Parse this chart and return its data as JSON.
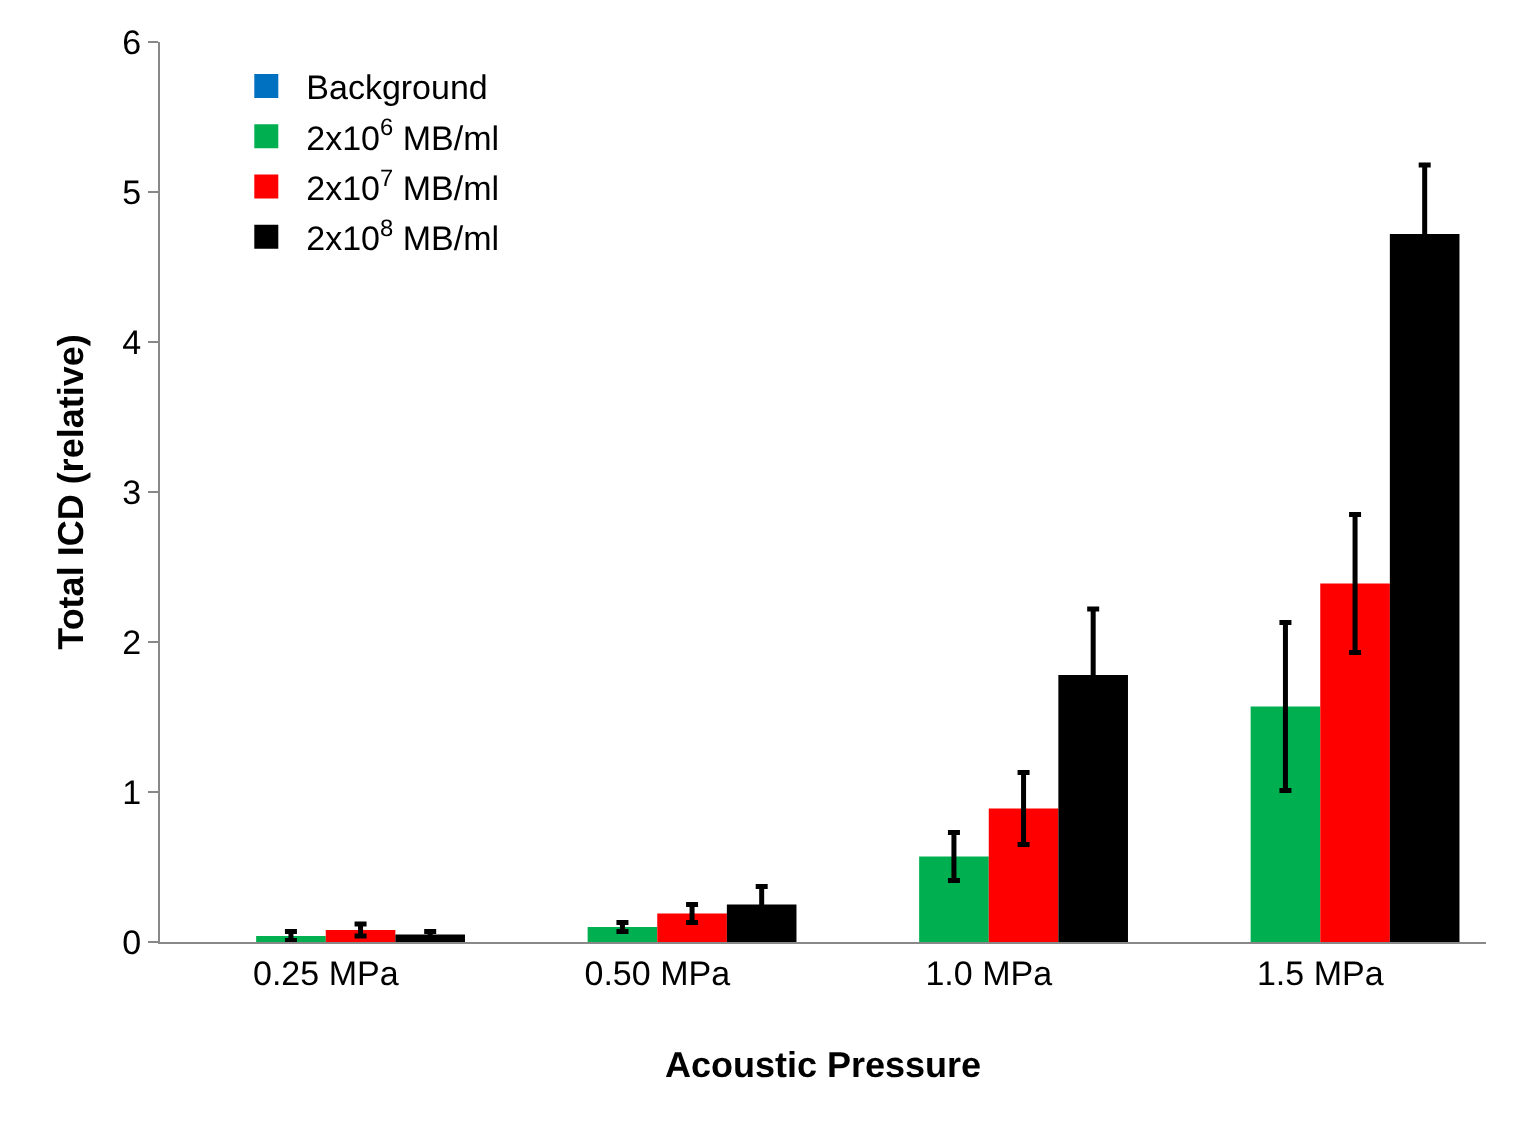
{
  "chart_data": {
    "type": "bar",
    "xlabel": "Acoustic Pressure",
    "ylabel": "Total ICD (relative)",
    "categories": [
      "0.25 MPa",
      "0.50 MPa",
      "1.0 MPa",
      "1.5 MPa"
    ],
    "series": [
      {
        "name": "Background",
        "color": "#0070c0",
        "values": [
          0,
          0,
          0,
          0
        ]
      },
      {
        "name": "2x10$^{6}$ MB/ml",
        "color": "#00b050",
        "values": [
          0.04,
          0.1,
          0.57,
          1.57
        ],
        "errors": [
          0.03,
          0.03,
          0.16,
          0.56
        ]
      },
      {
        "name": "2x10$^{7}$ MB/ml",
        "color": "#ff0000",
        "values": [
          0.08,
          0.19,
          0.89,
          2.39
        ],
        "errors": [
          0.04,
          0.06,
          0.24,
          0.46
        ]
      },
      {
        "name": "2x10$^{8}$ MB/ml",
        "color": "#000000",
        "values": [
          0.05,
          0.25,
          1.78,
          4.72
        ],
        "errors": [
          0.02,
          0.12,
          0.44,
          0.46
        ]
      }
    ],
    "ylim": [
      0,
      6
    ],
    "yticks": [
      0,
      1,
      2,
      3,
      4,
      5,
      6
    ],
    "grid": false,
    "legend": "top left"
  }
}
